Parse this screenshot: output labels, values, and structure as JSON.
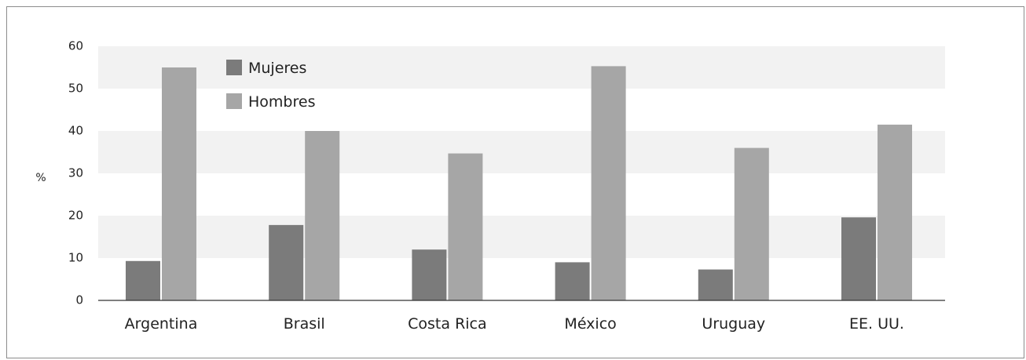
{
  "chart_data": {
    "type": "bar",
    "title": "",
    "xlabel": "",
    "ylabel": "%",
    "ylim": [
      0,
      60
    ],
    "yticks": [
      0,
      10,
      20,
      30,
      40,
      50,
      60
    ],
    "grid": "alternating horizontal bands",
    "legend_position": "top-left",
    "categories": [
      "Argentina",
      "Brasil",
      "Costa Rica",
      "México",
      "Uruguay",
      "EE. UU."
    ],
    "series": [
      {
        "name": "Mujeres",
        "color": "#7b7b7b",
        "values": [
          9.3,
          17.8,
          12.0,
          9.0,
          7.3,
          19.6
        ]
      },
      {
        "name": "Hombres",
        "color": "#a6a6a6",
        "values": [
          55.0,
          40.0,
          34.7,
          55.3,
          36.0,
          41.5
        ]
      }
    ],
    "colors": {
      "band": "#f2f2f2",
      "axis": "#333333"
    }
  }
}
